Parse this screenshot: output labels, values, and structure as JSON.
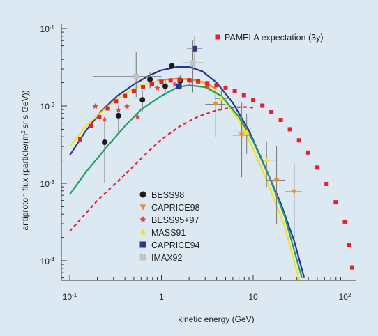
{
  "chart_data": {
    "type": "scatter",
    "title": "",
    "xlabel": "kinetic energy (GeV)",
    "ylabel": "antiproton flux (particle/(m² sr s GeV))",
    "xscale": "log",
    "yscale": "log",
    "xlim": [
      0.1,
      120
    ],
    "ylim": [
      5e-05,
      0.1
    ],
    "x_ticks": [
      {
        "value": 0.1,
        "base": "10",
        "exp": "-1"
      },
      {
        "value": 1,
        "base": "1",
        "exp": ""
      },
      {
        "value": 10,
        "base": "10",
        "exp": ""
      },
      {
        "value": 100,
        "base": "10",
        "exp": "2"
      }
    ],
    "y_ticks": [
      {
        "value": 0.1,
        "base": "10",
        "exp": "-1"
      },
      {
        "value": 0.01,
        "base": "10",
        "exp": "-2"
      },
      {
        "value": 0.001,
        "base": "10",
        "exp": "-3"
      },
      {
        "value": 0.0001,
        "base": "10",
        "exp": "-4"
      }
    ],
    "ylabel_parts": {
      "pre": "antiproton flux (particle/(m",
      "sup": "2",
      "post": " sr s GeV))"
    },
    "grid": false,
    "legend_position": "bottom-left",
    "colors": {
      "bess98": "#1a1a1a",
      "caprice98": "#f08c28",
      "bess9597": "#e8413c",
      "mass91": "#f5e11e",
      "caprice94": "#2a3590",
      "imax92": "#c3c3c3",
      "pamela": "#e8202a",
      "curve_green": "#1fa060",
      "curve_red": "#e8202a"
    },
    "series": [
      {
        "name": "BESS98",
        "key": "bess98",
        "marker": "circle",
        "points": [
          {
            "x": 0.24,
            "y": 0.0034,
            "ylo": 0.001,
            "yhi": 0.0072
          },
          {
            "x": 0.34,
            "y": 0.0075,
            "ylo": 0.0045,
            "yhi": 0.0105
          },
          {
            "x": 0.62,
            "y": 0.012,
            "ylo": 0.0085,
            "yhi": 0.016
          },
          {
            "x": 0.75,
            "y": 0.022,
            "ylo": 0.017,
            "yhi": 0.027
          },
          {
            "x": 1.1,
            "y": 0.018,
            "ylo": 0.015,
            "yhi": 0.022
          },
          {
            "x": 1.3,
            "y": 0.033,
            "ylo": 0.027,
            "yhi": 0.039
          },
          {
            "x": 1.6,
            "y": 0.021,
            "ylo": 0.018,
            "yhi": 0.025
          }
        ]
      },
      {
        "name": "CAPRICE98",
        "key": "caprice98",
        "marker": "triangle-down",
        "points": [
          {
            "x": 3.9,
            "y": 0.0105,
            "ylo": 0.004,
            "yhi": 0.022,
            "xlo": 3.0,
            "xhi": 5.0
          },
          {
            "x": 7.5,
            "y": 0.0042,
            "ylo": 0.0012,
            "yhi": 0.011,
            "xlo": 6.0,
            "xhi": 9.5
          },
          {
            "x": 18,
            "y": 0.0011,
            "ylo": 0.0003,
            "yhi": 0.003,
            "xlo": 14,
            "xhi": 22
          },
          {
            "x": 28,
            "y": 0.00078,
            "ylo": 0.00018,
            "yhi": 0.0018,
            "xlo": 22,
            "xhi": 34
          }
        ]
      },
      {
        "name": "BESS95+97",
        "key": "bess9597",
        "marker": "star",
        "points": [
          {
            "x": 0.19,
            "y": 0.0099
          },
          {
            "x": 0.24,
            "y": 0.0067
          },
          {
            "x": 0.34,
            "y": 0.0089
          },
          {
            "x": 0.42,
            "y": 0.0098
          },
          {
            "x": 0.55,
            "y": 0.0072
          },
          {
            "x": 0.9,
            "y": 0.017
          },
          {
            "x": 1.4,
            "y": 0.019
          },
          {
            "x": 2.1,
            "y": 0.021
          },
          {
            "x": 3.2,
            "y": 0.018
          }
        ]
      },
      {
        "name": "MASS91",
        "key": "mass91",
        "marker": "triangle-up",
        "points": [
          {
            "x": 4.5,
            "y": 0.0125,
            "ylo": 0.009,
            "yhi": 0.017,
            "xlo": 3.8,
            "xhi": 5.3
          },
          {
            "x": 8.5,
            "y": 0.0046,
            "ylo": 0.0024,
            "yhi": 0.008,
            "xlo": 6.5,
            "xhi": 10.5
          },
          {
            "x": 14,
            "y": 0.002,
            "ylo": 0.0009,
            "yhi": 0.0035,
            "xlo": 11,
            "xhi": 18
          }
        ]
      },
      {
        "name": "CAPRICE94",
        "key": "caprice94",
        "marker": "square",
        "points": [
          {
            "x": 1.55,
            "y": 0.018,
            "ylo": 0.012,
            "yhi": 0.025,
            "xlo": 1.1,
            "xhi": 1.9
          },
          {
            "x": 2.3,
            "y": 0.055,
            "ylo": 0.03,
            "yhi": 0.08,
            "xlo": 1.9,
            "xhi": 2.8
          }
        ]
      },
      {
        "name": "IMAX92",
        "key": "imax92",
        "marker": "square",
        "points": [
          {
            "x": 0.53,
            "y": 0.024,
            "ylo": 0.013,
            "yhi": 0.05,
            "xlo": 0.18,
            "xhi": 1.0
          },
          {
            "x": 2.2,
            "y": 0.036,
            "ylo": 0.015,
            "yhi": 0.07,
            "xlo": 1.7,
            "xhi": 2.9
          }
        ]
      },
      {
        "name": "PAMELA expectation (3y)",
        "key": "pamela",
        "marker": "square-filled",
        "points": [
          {
            "x": 0.13,
            "y": 0.0037
          },
          {
            "x": 0.17,
            "y": 0.0055
          },
          {
            "x": 0.21,
            "y": 0.0072
          },
          {
            "x": 0.26,
            "y": 0.0093
          },
          {
            "x": 0.32,
            "y": 0.0115
          },
          {
            "x": 0.4,
            "y": 0.0135
          },
          {
            "x": 0.5,
            "y": 0.0155
          },
          {
            "x": 0.63,
            "y": 0.0175
          },
          {
            "x": 0.79,
            "y": 0.0192
          },
          {
            "x": 1.0,
            "y": 0.0205
          },
          {
            "x": 1.26,
            "y": 0.0214
          },
          {
            "x": 1.58,
            "y": 0.0218
          },
          {
            "x": 2.0,
            "y": 0.0215
          },
          {
            "x": 2.51,
            "y": 0.0208
          },
          {
            "x": 3.16,
            "y": 0.0197
          },
          {
            "x": 3.98,
            "y": 0.0185
          },
          {
            "x": 5.01,
            "y": 0.0172
          },
          {
            "x": 6.3,
            "y": 0.0155
          },
          {
            "x": 7.94,
            "y": 0.0138
          },
          {
            "x": 10.0,
            "y": 0.012
          },
          {
            "x": 12.6,
            "y": 0.0101
          },
          {
            "x": 15.8,
            "y": 0.0083
          },
          {
            "x": 20.0,
            "y": 0.0066
          },
          {
            "x": 25.1,
            "y": 0.005
          },
          {
            "x": 31.6,
            "y": 0.0036
          },
          {
            "x": 39.8,
            "y": 0.0025
          },
          {
            "x": 50.1,
            "y": 0.0016
          },
          {
            "x": 63.1,
            "y": 0.00098
          },
          {
            "x": 79.4,
            "y": 0.00057
          },
          {
            "x": 100,
            "y": 0.00032
          },
          {
            "x": 112,
            "y": 0.00016
          },
          {
            "x": 120,
            "y": 8.2e-05
          }
        ]
      }
    ],
    "curves": [
      {
        "key": "curve_blue",
        "color": "#2a3590",
        "dash": false,
        "points": [
          [
            0.1,
            0.0023
          ],
          [
            0.15,
            0.0048
          ],
          [
            0.22,
            0.0085
          ],
          [
            0.33,
            0.0135
          ],
          [
            0.5,
            0.019
          ],
          [
            0.75,
            0.025
          ],
          [
            1.0,
            0.029
          ],
          [
            1.5,
            0.032
          ],
          [
            2.0,
            0.032
          ],
          [
            2.8,
            0.028
          ],
          [
            4.0,
            0.02
          ],
          [
            6.0,
            0.011
          ],
          [
            9.0,
            0.0048
          ],
          [
            13,
            0.0018
          ],
          [
            20,
            0.00055
          ],
          [
            28,
            0.00018
          ],
          [
            36,
            6e-05
          ]
        ]
      },
      {
        "key": "curve_yellow",
        "color": "#f5e11e",
        "dash": false,
        "points": [
          [
            0.1,
            0.003
          ],
          [
            0.15,
            0.0055
          ],
          [
            0.25,
            0.0095
          ],
          [
            0.4,
            0.0145
          ],
          [
            0.6,
            0.0185
          ],
          [
            1.0,
            0.0215
          ],
          [
            1.5,
            0.0225
          ],
          [
            2.0,
            0.022
          ],
          [
            3.0,
            0.019
          ],
          [
            4.5,
            0.0135
          ],
          [
            7.0,
            0.0065
          ],
          [
            10,
            0.0028
          ],
          [
            15,
            0.0009
          ],
          [
            22,
            0.00028
          ],
          [
            32,
            5.5e-05
          ]
        ]
      },
      {
        "key": "curve_green",
        "color": "#1fa060",
        "dash": false,
        "points": [
          [
            0.1,
            0.00072
          ],
          [
            0.15,
            0.0014
          ],
          [
            0.25,
            0.0029
          ],
          [
            0.4,
            0.0055
          ],
          [
            0.6,
            0.009
          ],
          [
            1.0,
            0.0135
          ],
          [
            1.5,
            0.0175
          ],
          [
            2.0,
            0.0185
          ],
          [
            3.0,
            0.0175
          ],
          [
            4.5,
            0.0135
          ],
          [
            7.0,
            0.0072
          ],
          [
            10,
            0.0035
          ],
          [
            15,
            0.0012
          ],
          [
            22,
            0.00038
          ],
          [
            34,
            6e-05
          ]
        ]
      },
      {
        "key": "curve_red_dashed",
        "color": "#e8202a",
        "dash": true,
        "points": [
          [
            0.1,
            0.00024
          ],
          [
            0.2,
            0.0006
          ],
          [
            0.4,
            0.0013
          ],
          [
            0.7,
            0.0025
          ],
          [
            1.0,
            0.0037
          ],
          [
            1.6,
            0.0055
          ],
          [
            2.5,
            0.0073
          ],
          [
            4.0,
            0.0088
          ],
          [
            6.0,
            0.0096
          ],
          [
            8.0,
            0.0097
          ],
          [
            10,
            0.0095
          ]
        ]
      },
      {
        "key": "curve_orange",
        "color": "#f08c28",
        "dash": false,
        "points": [
          [
            0.9,
            0.0215
          ],
          [
            1.5,
            0.0225
          ],
          [
            2.2,
            0.022
          ],
          [
            3.0,
            0.02
          ],
          [
            4.0,
            0.0165
          ]
        ]
      }
    ]
  }
}
